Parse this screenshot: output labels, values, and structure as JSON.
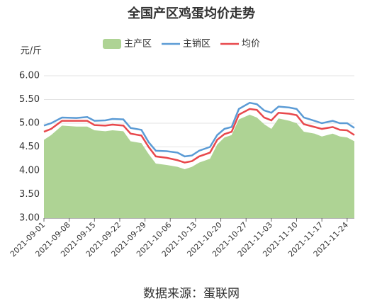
{
  "chart_data": {
    "type": "line",
    "title": "全国产区鸡蛋均价走势",
    "y_label": "元/斤",
    "source": "数据来源：蛋联网",
    "x": [
      "2021-09-01",
      "2021-09-03",
      "2021-09-06",
      "2021-09-10",
      "2021-09-13",
      "2021-09-15",
      "2021-09-18",
      "2021-09-20",
      "2021-09-23",
      "2021-09-25",
      "2021-09-28",
      "2021-09-30",
      "2021-10-02",
      "2021-10-05",
      "2021-10-08",
      "2021-10-10",
      "2021-10-12",
      "2021-10-14",
      "2021-10-17",
      "2021-10-19",
      "2021-10-21",
      "2021-10-23",
      "2021-10-25",
      "2021-10-28",
      "2021-10-30",
      "2021-11-01",
      "2021-11-03",
      "2021-11-05",
      "2021-11-08",
      "2021-11-10",
      "2021-11-12",
      "2021-11-15",
      "2021-11-17",
      "2021-11-20",
      "2021-11-22",
      "2021-11-24",
      "2021-11-26"
    ],
    "series": [
      {
        "name": "主产区",
        "kind": "area",
        "color": "#aed394",
        "values": [
          4.65,
          4.75,
          4.95,
          4.93,
          4.93,
          4.85,
          4.83,
          4.85,
          4.83,
          4.62,
          4.58,
          4.35,
          4.15,
          4.12,
          4.08,
          4.03,
          4.08,
          4.17,
          4.25,
          4.55,
          4.7,
          4.75,
          5.08,
          5.18,
          5.12,
          4.98,
          4.88,
          5.1,
          5.05,
          5.0,
          4.82,
          4.78,
          4.72,
          4.78,
          4.72,
          4.7,
          4.62
        ]
      },
      {
        "name": "主销区",
        "kind": "line",
        "color": "#5b9bd5",
        "values": [
          4.95,
          5.0,
          5.12,
          5.11,
          5.13,
          5.05,
          5.06,
          5.09,
          5.08,
          4.9,
          4.86,
          4.6,
          4.42,
          4.41,
          4.38,
          4.3,
          4.32,
          4.42,
          4.5,
          4.75,
          4.88,
          4.92,
          5.3,
          5.43,
          5.4,
          5.27,
          5.22,
          5.35,
          5.33,
          5.3,
          5.12,
          5.05,
          5.0,
          5.05,
          5.0,
          5.0,
          4.9
        ]
      },
      {
        "name": "均价",
        "kind": "line",
        "color": "#e8484c",
        "values": [
          4.82,
          4.88,
          5.05,
          5.05,
          5.05,
          4.96,
          4.95,
          4.97,
          4.95,
          4.78,
          4.74,
          4.5,
          4.3,
          4.27,
          4.22,
          4.17,
          4.2,
          4.3,
          4.38,
          4.65,
          4.77,
          4.82,
          5.18,
          5.3,
          5.28,
          5.12,
          5.06,
          5.22,
          5.2,
          5.17,
          4.98,
          4.92,
          4.88,
          4.92,
          4.86,
          4.85,
          4.75
        ]
      }
    ],
    "xlim": [
      "2021-09-01",
      "2021-11-26"
    ],
    "xticks": [
      "2021-09-01",
      "2021-09-08",
      "2021-09-15",
      "2021-09-22",
      "2021-09-29",
      "2021-10-06",
      "2021-10-13",
      "2021-10-20",
      "2021-10-27",
      "2021-11-03",
      "2021-11-10",
      "2021-11-17",
      "2021-11-24"
    ],
    "ylim": [
      3,
      6
    ],
    "yticks": [
      {
        "value": 3,
        "label": "3.00"
      },
      {
        "value": 3.5,
        "label": "3.50"
      },
      {
        "value": 4,
        "label": "4.00"
      },
      {
        "value": 4.5,
        "label": "4.50"
      },
      {
        "value": 5,
        "label": "5.00"
      },
      {
        "value": 5.5,
        "label": "5.50"
      },
      {
        "value": 6,
        "label": "6.00"
      }
    ],
    "grid": true
  }
}
